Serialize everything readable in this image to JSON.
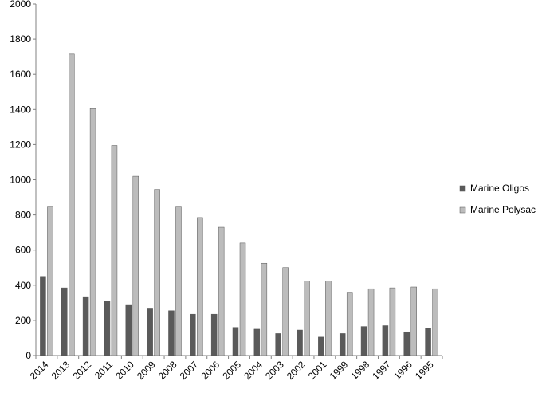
{
  "chart_data": {
    "type": "bar",
    "title": "",
    "xlabel": "",
    "ylabel": "",
    "ylim": [
      0,
      2000
    ],
    "y_ticks": [
      "0",
      "200",
      "400",
      "600",
      "800",
      "1000",
      "1200",
      "1400",
      "1600",
      "1800",
      "2000"
    ],
    "grid": false,
    "legend_position": "right",
    "categories": [
      "2014",
      "2013",
      "2012",
      "2011",
      "2010",
      "2009",
      "2008",
      "2007",
      "2006",
      "2005",
      "2004",
      "2003",
      "2002",
      "2001",
      "1999",
      "1998",
      "1997",
      "1996",
      "1995"
    ],
    "series": [
      {
        "name": "Marine Oligos",
        "color": "#5a5a5a",
        "values": [
          450,
          385,
          335,
          310,
          290,
          270,
          255,
          235,
          235,
          160,
          150,
          125,
          145,
          105,
          125,
          165,
          170,
          135,
          155
        ]
      },
      {
        "name": "Marine Polysac",
        "color": "#bcbcbc",
        "values": [
          845,
          1715,
          1405,
          1195,
          1020,
          945,
          845,
          785,
          730,
          640,
          525,
          500,
          425,
          425,
          360,
          380,
          385,
          390,
          380
        ]
      }
    ]
  }
}
